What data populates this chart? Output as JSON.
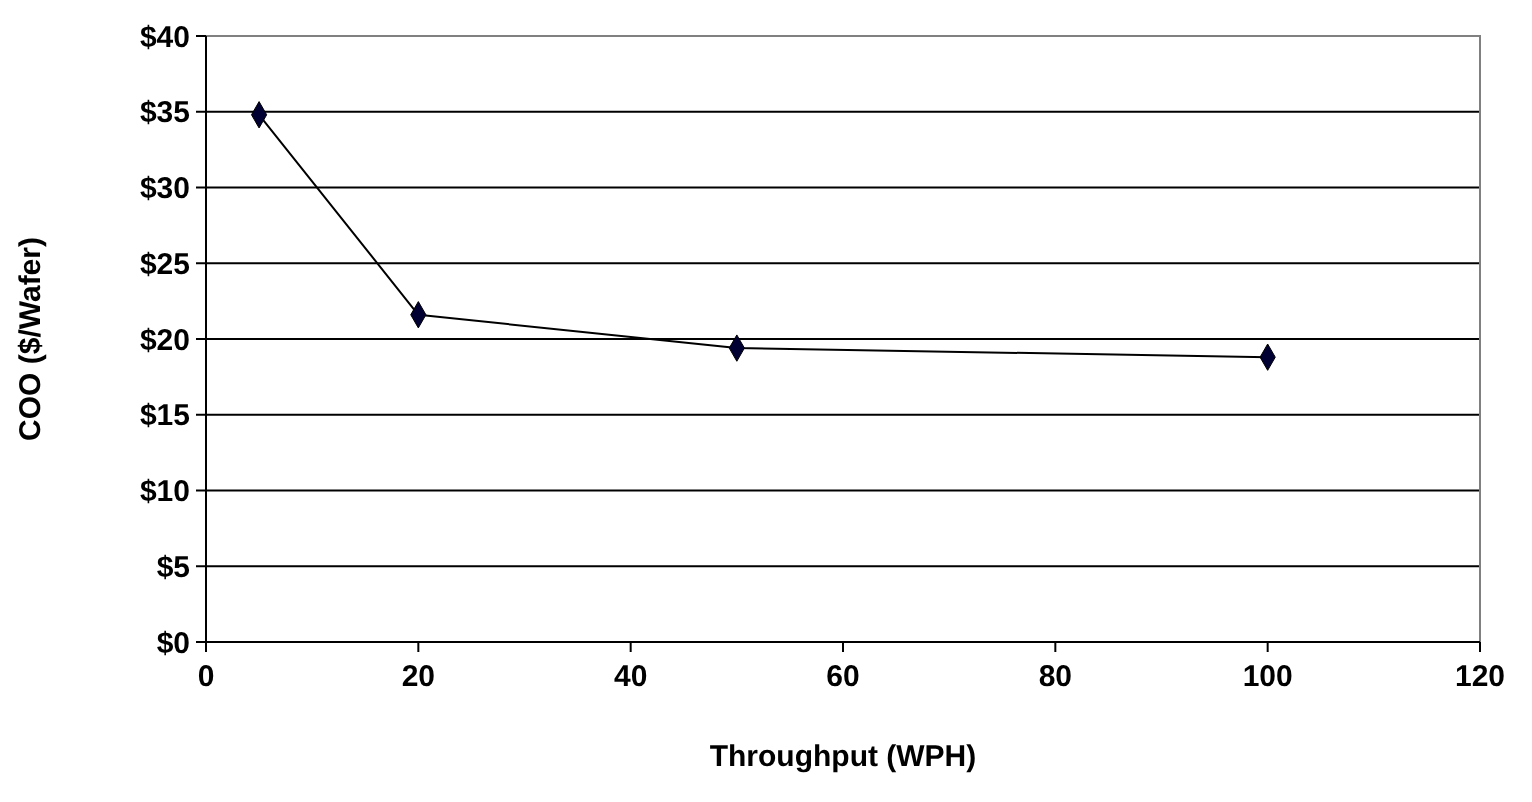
{
  "chart_data": {
    "type": "line",
    "xlabel": "Throughput (WPH)",
    "ylabel": "COO ($/Wafer)",
    "x": [
      5,
      20,
      50,
      100
    ],
    "series": [
      {
        "color": "#000033",
        "values": [
          34.8,
          21.6,
          19.4,
          18.8
        ]
      }
    ],
    "xlim": [
      0,
      120
    ],
    "xticks": [
      0,
      20,
      40,
      60,
      80,
      100,
      120
    ],
    "ylim": [
      0,
      40
    ],
    "yticks": [
      {
        "value": 0,
        "label": "$0"
      },
      {
        "value": 5,
        "label": "$5"
      },
      {
        "value": 10,
        "label": "$10"
      },
      {
        "value": 15,
        "label": "$15"
      },
      {
        "value": 20,
        "label": "$20"
      },
      {
        "value": 25,
        "label": "$25"
      },
      {
        "value": 30,
        "label": "$30"
      },
      {
        "value": 35,
        "label": "$35"
      },
      {
        "value": 40,
        "label": "$40"
      }
    ],
    "grid": "y",
    "marker": "diamond",
    "line_style": "solid"
  }
}
